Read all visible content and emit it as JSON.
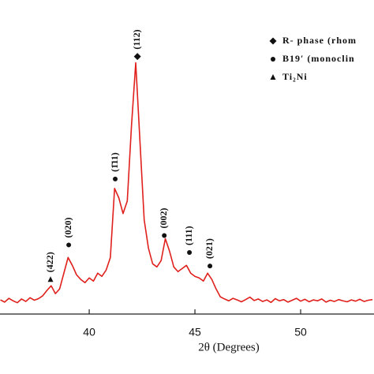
{
  "chart_data": {
    "type": "line",
    "x_label": "2θ (Degrees)",
    "xlim": [
      35.78,
      53.47
    ],
    "xticks": [
      40,
      45,
      50
    ],
    "ylim": [
      0,
      100
    ],
    "x": [
      35.8,
      36.0,
      36.2,
      36.4,
      36.6,
      36.8,
      37.0,
      37.2,
      37.4,
      37.6,
      37.8,
      38.0,
      38.2,
      38.4,
      38.6,
      38.8,
      39.0,
      39.2,
      39.4,
      39.6,
      39.8,
      40.0,
      40.2,
      40.4,
      40.6,
      40.8,
      41.0,
      41.2,
      41.4,
      41.6,
      41.8,
      42.0,
      42.2,
      42.4,
      42.6,
      42.8,
      43.0,
      43.2,
      43.4,
      43.6,
      43.8,
      44.0,
      44.2,
      44.4,
      44.6,
      44.8,
      45.0,
      45.2,
      45.4,
      45.6,
      45.8,
      46.0,
      46.2,
      46.4,
      46.6,
      46.8,
      47.0,
      47.2,
      47.4,
      47.6,
      47.8,
      48.0,
      48.2,
      48.4,
      48.6,
      48.8,
      49.0,
      49.2,
      49.4,
      49.6,
      49.8,
      50.0,
      50.2,
      50.4,
      50.6,
      50.8,
      51.0,
      51.2,
      51.4,
      51.6,
      51.8,
      52.0,
      52.2,
      52.4,
      52.6,
      52.8,
      53.0,
      53.2,
      53.4
    ],
    "series": [
      {
        "color": "#e0201c",
        "values": [
          4.5,
          3.8,
          5.0,
          4.2,
          3.6,
          4.8,
          4.0,
          5.2,
          4.4,
          4.9,
          5.8,
          7.5,
          9.0,
          6.5,
          8.0,
          13.0,
          18.0,
          15.5,
          12.5,
          11.0,
          10.0,
          11.5,
          10.5,
          13.0,
          12.0,
          14.0,
          18.0,
          40.0,
          37.0,
          32.0,
          36.0,
          60.0,
          80.0,
          55.0,
          30.0,
          21.0,
          16.0,
          15.0,
          17.0,
          24.0,
          20.0,
          15.0,
          13.5,
          14.5,
          15.5,
          13.0,
          12.0,
          11.5,
          10.5,
          13.0,
          11.0,
          8.0,
          5.5,
          4.8,
          4.2,
          5.0,
          4.5,
          3.9,
          4.6,
          5.4,
          4.3,
          4.8,
          4.0,
          4.5,
          3.7,
          4.9,
          4.2,
          4.6,
          3.8,
          4.4,
          5.0,
          4.1,
          4.7,
          3.9,
          4.5,
          4.2,
          4.8,
          3.8,
          4.4,
          4.0,
          4.6,
          4.2,
          3.9,
          4.5,
          4.1,
          4.7,
          4.0,
          4.4,
          4.6
        ]
      }
    ],
    "annotations": [
      {
        "text": "(422)",
        "x": 38.17,
        "y": 11,
        "marker": "triangle"
      },
      {
        "text": "(020)",
        "x": 39.03,
        "y": 22,
        "marker": "circle"
      },
      {
        "text": "(1̄11)",
        "x": 41.23,
        "y": 43,
        "marker": "circle"
      },
      {
        "text": "(112)",
        "x": 42.28,
        "y": 82,
        "marker": "diamond"
      },
      {
        "text": "(002)",
        "x": 43.55,
        "y": 25,
        "marker": "circle"
      },
      {
        "text": "(111)",
        "x": 44.74,
        "y": 19.6,
        "marker": "circle"
      },
      {
        "text": "(021)",
        "x": 45.71,
        "y": 15.3,
        "marker": "circle"
      }
    ],
    "legend": [
      {
        "marker": "diamond",
        "label": "R- phase (rhom"
      },
      {
        "marker": "circle",
        "label": "B19′ (monoclin"
      },
      {
        "marker": "triangle",
        "label": "Ti₂Ni"
      }
    ]
  }
}
